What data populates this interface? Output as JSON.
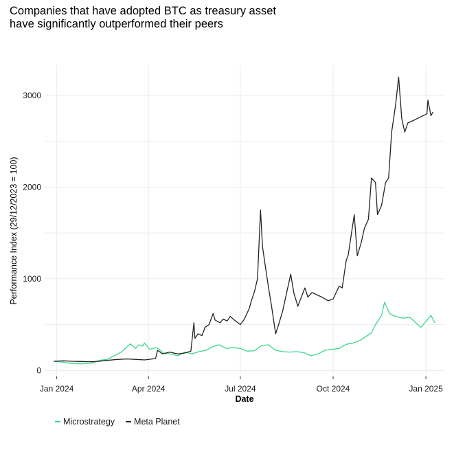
{
  "chart_data": {
    "type": "line",
    "title": "Companies that have adopted BTC as treasury asset\n have significantly outperformed their peers",
    "xlabel": "Date",
    "ylabel": "Performance Index (29/12/2023 = 100)",
    "x_range": [
      "2023-12-20",
      "2025-01-20"
    ],
    "ylim": [
      -50,
      3330
    ],
    "x_ticks": [
      {
        "label": "Jan 2024",
        "date": "2024-01-01"
      },
      {
        "label": "Apr 2024",
        "date": "2024-04-01"
      },
      {
        "label": "Jul 2024",
        "date": "2024-07-01"
      },
      {
        "label": "Oct 2024",
        "date": "2024-10-01"
      },
      {
        "label": "Jan 2025",
        "date": "2025-01-01"
      }
    ],
    "y_ticks": [
      0,
      1000,
      2000,
      3000
    ],
    "grid": true,
    "legend_position": "bottom-left",
    "series": [
      {
        "name": "Microstrategy",
        "color": "#3dd68c",
        "points": [
          [
            "2023-12-29",
            100
          ],
          [
            "2024-01-08",
            90
          ],
          [
            "2024-01-16",
            75
          ],
          [
            "2024-01-25",
            72
          ],
          [
            "2024-02-05",
            80
          ],
          [
            "2024-02-12",
            110
          ],
          [
            "2024-02-20",
            120
          ],
          [
            "2024-02-27",
            160
          ],
          [
            "2024-03-05",
            200
          ],
          [
            "2024-03-11",
            260
          ],
          [
            "2024-03-14",
            290
          ],
          [
            "2024-03-19",
            240
          ],
          [
            "2024-03-22",
            280
          ],
          [
            "2024-03-26",
            265
          ],
          [
            "2024-03-28",
            300
          ],
          [
            "2024-04-02",
            230
          ],
          [
            "2024-04-09",
            250
          ],
          [
            "2024-04-16",
            190
          ],
          [
            "2024-04-23",
            180
          ],
          [
            "2024-04-30",
            160
          ],
          [
            "2024-05-07",
            200
          ],
          [
            "2024-05-14",
            180
          ],
          [
            "2024-05-21",
            205
          ],
          [
            "2024-05-28",
            220
          ],
          [
            "2024-06-04",
            260
          ],
          [
            "2024-06-10",
            280
          ],
          [
            "2024-06-17",
            240
          ],
          [
            "2024-06-24",
            250
          ],
          [
            "2024-07-01",
            240
          ],
          [
            "2024-07-08",
            210
          ],
          [
            "2024-07-15",
            215
          ],
          [
            "2024-07-22",
            270
          ],
          [
            "2024-07-29",
            280
          ],
          [
            "2024-08-05",
            220
          ],
          [
            "2024-08-12",
            205
          ],
          [
            "2024-08-19",
            200
          ],
          [
            "2024-08-26",
            205
          ],
          [
            "2024-09-02",
            195
          ],
          [
            "2024-09-09",
            160
          ],
          [
            "2024-09-16",
            180
          ],
          [
            "2024-09-23",
            220
          ],
          [
            "2024-09-30",
            230
          ],
          [
            "2024-10-07",
            240
          ],
          [
            "2024-10-14",
            285
          ],
          [
            "2024-10-21",
            300
          ],
          [
            "2024-10-28",
            330
          ],
          [
            "2024-11-04",
            380
          ],
          [
            "2024-11-08",
            410
          ],
          [
            "2024-11-12",
            500
          ],
          [
            "2024-11-15",
            550
          ],
          [
            "2024-11-18",
            600
          ],
          [
            "2024-11-21",
            745
          ],
          [
            "2024-11-26",
            620
          ],
          [
            "2024-12-02",
            590
          ],
          [
            "2024-12-09",
            570
          ],
          [
            "2024-12-16",
            580
          ],
          [
            "2024-12-20",
            540
          ],
          [
            "2024-12-27",
            470
          ],
          [
            "2025-01-03",
            560
          ],
          [
            "2025-01-06",
            600
          ],
          [
            "2025-01-10",
            520
          ]
        ]
      },
      {
        "name": "Meta Planet",
        "color": "#222222",
        "points": [
          [
            "2023-12-29",
            100
          ],
          [
            "2024-01-08",
            105
          ],
          [
            "2024-01-16",
            100
          ],
          [
            "2024-01-25",
            98
          ],
          [
            "2024-02-05",
            95
          ],
          [
            "2024-02-12",
            100
          ],
          [
            "2024-02-20",
            110
          ],
          [
            "2024-03-01",
            120
          ],
          [
            "2024-03-11",
            125
          ],
          [
            "2024-03-20",
            120
          ],
          [
            "2024-03-28",
            115
          ],
          [
            "2024-04-05",
            125
          ],
          [
            "2024-04-08",
            130
          ],
          [
            "2024-04-10",
            220
          ],
          [
            "2024-04-15",
            180
          ],
          [
            "2024-04-22",
            200
          ],
          [
            "2024-04-30",
            180
          ],
          [
            "2024-05-07",
            190
          ],
          [
            "2024-05-13",
            210
          ],
          [
            "2024-05-16",
            520
          ],
          [
            "2024-05-17",
            350
          ],
          [
            "2024-05-20",
            400
          ],
          [
            "2024-05-24",
            380
          ],
          [
            "2024-05-27",
            470
          ],
          [
            "2024-05-31",
            500
          ],
          [
            "2024-06-04",
            620
          ],
          [
            "2024-06-06",
            550
          ],
          [
            "2024-06-11",
            520
          ],
          [
            "2024-06-14",
            560
          ],
          [
            "2024-06-18",
            540
          ],
          [
            "2024-06-21",
            590
          ],
          [
            "2024-06-25",
            550
          ],
          [
            "2024-07-01",
            500
          ],
          [
            "2024-07-05",
            560
          ],
          [
            "2024-07-10",
            680
          ],
          [
            "2024-07-12",
            760
          ],
          [
            "2024-07-15",
            860
          ],
          [
            "2024-07-18",
            1000
          ],
          [
            "2024-07-21",
            1750
          ],
          [
            "2024-07-23",
            1350
          ],
          [
            "2024-07-25",
            1200
          ],
          [
            "2024-07-29",
            900
          ],
          [
            "2024-08-01",
            700
          ],
          [
            "2024-08-05",
            400
          ],
          [
            "2024-08-08",
            500
          ],
          [
            "2024-08-12",
            650
          ],
          [
            "2024-08-16",
            850
          ],
          [
            "2024-08-20",
            1050
          ],
          [
            "2024-08-23",
            850
          ],
          [
            "2024-08-27",
            700
          ],
          [
            "2024-09-03",
            900
          ],
          [
            "2024-09-06",
            800
          ],
          [
            "2024-09-10",
            850
          ],
          [
            "2024-09-20",
            800
          ],
          [
            "2024-09-26",
            760
          ],
          [
            "2024-10-01",
            780
          ],
          [
            "2024-10-07",
            920
          ],
          [
            "2024-10-10",
            900
          ],
          [
            "2024-10-14",
            1200
          ],
          [
            "2024-10-16",
            1260
          ],
          [
            "2024-10-22",
            1700
          ],
          [
            "2024-10-25",
            1250
          ],
          [
            "2024-10-29",
            1400
          ],
          [
            "2024-11-01",
            1550
          ],
          [
            "2024-11-05",
            1650
          ],
          [
            "2024-11-08",
            2100
          ],
          [
            "2024-11-12",
            2050
          ],
          [
            "2024-11-14",
            1700
          ],
          [
            "2024-11-18",
            1800
          ],
          [
            "2024-11-22",
            2050
          ],
          [
            "2024-11-25",
            2100
          ],
          [
            "2024-11-28",
            2600
          ],
          [
            "2024-12-02",
            2900
          ],
          [
            "2024-12-05",
            3200
          ],
          [
            "2024-12-08",
            2750
          ],
          [
            "2024-12-11",
            2600
          ],
          [
            "2024-12-14",
            2700
          ],
          [
            "2024-12-20",
            2730
          ],
          [
            "2025-01-02",
            2800
          ],
          [
            "2025-01-03",
            2950
          ],
          [
            "2025-01-06",
            2780
          ],
          [
            "2025-01-08",
            2820
          ]
        ]
      }
    ]
  },
  "legend": {
    "items": [
      {
        "label": "Microstrategy",
        "color": "#3dd68c"
      },
      {
        "label": "Meta Planet",
        "color": "#222222"
      }
    ]
  }
}
